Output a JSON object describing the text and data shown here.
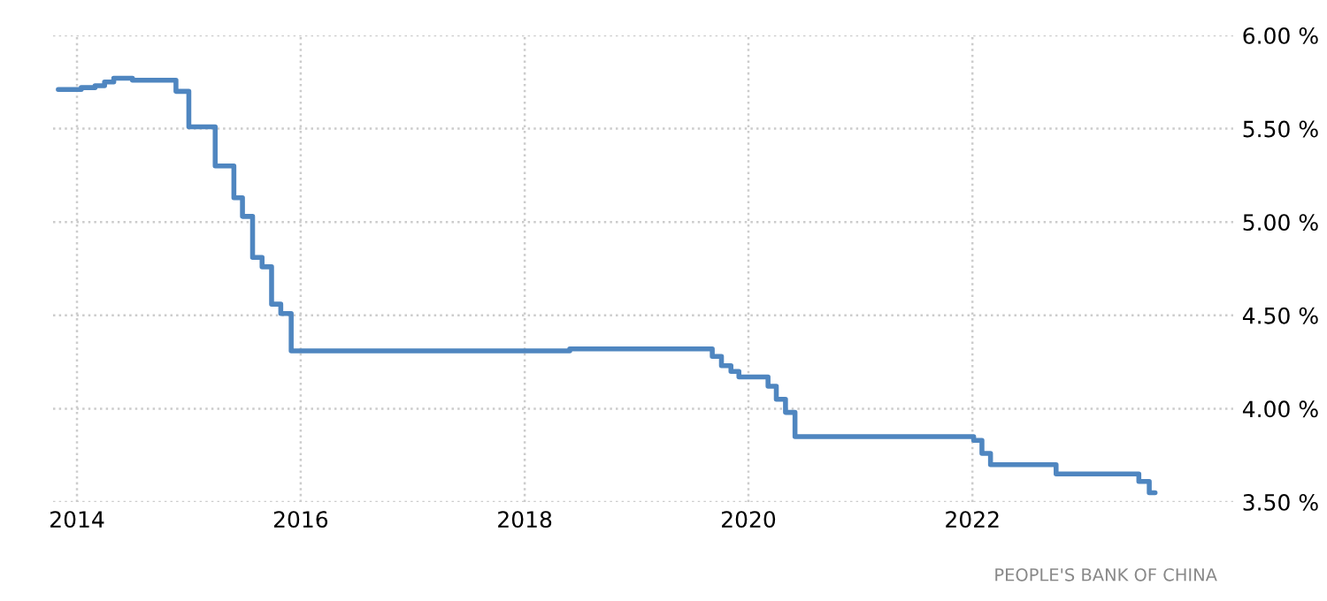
{
  "chart_data": {
    "type": "step",
    "x": [
      "2013-11-01",
      "2014-01-15",
      "2014-03-01",
      "2014-04-01",
      "2014-05-01",
      "2014-07-01",
      "2014-11-20",
      "2015-01-01",
      "2015-03-28",
      "2015-05-28",
      "2015-06-25",
      "2015-07-28",
      "2015-08-28",
      "2015-09-28",
      "2015-10-28",
      "2015-12-01",
      "2018-05-28",
      "2019-09-05",
      "2019-10-05",
      "2019-11-05",
      "2019-12-01",
      "2020-03-05",
      "2020-04-01",
      "2020-05-01",
      "2020-06-01",
      "2022-01-05",
      "2022-02-01",
      "2022-03-01",
      "2022-10-01",
      "2023-06-28",
      "2023-08-01",
      "2023-08-20"
    ],
    "series": [
      {
        "color": "#4f86c0",
        "values": [
          5.71,
          5.72,
          5.73,
          5.75,
          5.77,
          5.76,
          5.7,
          5.51,
          5.3,
          5.13,
          5.03,
          4.81,
          4.76,
          4.56,
          4.51,
          4.31,
          4.32,
          4.28,
          4.23,
          4.2,
          4.17,
          4.12,
          4.05,
          3.98,
          3.85,
          3.83,
          3.76,
          3.7,
          3.65,
          3.61,
          3.55,
          3.55
        ]
      }
    ],
    "xlim": [
      "2013-10-15",
      "2024-05-01"
    ],
    "xticks": [
      {
        "value": "2014",
        "label": "2014"
      },
      {
        "value": "2016",
        "label": "2016"
      },
      {
        "value": "2018",
        "label": "2018"
      },
      {
        "value": "2020",
        "label": "2020"
      },
      {
        "value": "2022",
        "label": "2022"
      }
    ],
    "ylim": [
      3.5,
      6.0
    ],
    "yticks": [
      {
        "value": 3.5,
        "label": "3.50 %"
      },
      {
        "value": 4.0,
        "label": "4.00 %"
      },
      {
        "value": 4.5,
        "label": "4.50 %"
      },
      {
        "value": 5.0,
        "label": "5.00 %"
      },
      {
        "value": 5.5,
        "label": "5.50 %"
      },
      {
        "value": 6.0,
        "label": "6.00 %"
      }
    ],
    "grid": true,
    "line_style": "solid",
    "annotations": [
      "PEOPLE'S BANK OF CHINA"
    ]
  }
}
